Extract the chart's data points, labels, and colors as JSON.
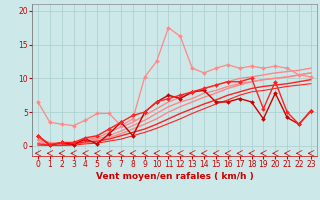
{
  "xlabel": "Vent moyen/en rafales ( km/h )",
  "bg_color": "#cce8e8",
  "grid_color": "#aacece",
  "xlim": [
    -0.5,
    23.5
  ],
  "ylim": [
    -1.5,
    21
  ],
  "yticks": [
    0,
    5,
    10,
    15,
    20
  ],
  "xticks": [
    0,
    1,
    2,
    3,
    4,
    5,
    6,
    7,
    8,
    9,
    10,
    11,
    12,
    13,
    14,
    15,
    16,
    17,
    18,
    19,
    20,
    21,
    22,
    23
  ],
  "lines": [
    {
      "x": [
        0,
        1,
        2,
        3,
        4,
        5,
        6,
        7,
        8,
        9,
        10,
        11,
        12,
        13,
        14,
        15,
        16,
        17,
        18,
        19,
        20,
        21,
        22,
        23
      ],
      "y": [
        6.5,
        3.5,
        3.2,
        3.0,
        3.8,
        4.8,
        4.8,
        3.0,
        4.0,
        10.2,
        12.5,
        17.5,
        16.2,
        11.5,
        10.8,
        11.5,
        12.0,
        11.5,
        11.8,
        11.5,
        11.8,
        11.5,
        10.5,
        10.2
      ],
      "color": "#ff8888",
      "lw": 0.9,
      "marker": "D",
      "ms": 2.0,
      "zorder": 4
    },
    {
      "x": [
        0,
        1,
        2,
        3,
        4,
        5,
        6,
        7,
        8,
        9,
        10,
        11,
        12,
        13,
        14,
        15,
        16,
        17,
        18,
        19,
        20,
        21,
        22,
        23
      ],
      "y": [
        1.0,
        0.5,
        0.3,
        0.5,
        1.0,
        1.2,
        2.0,
        2.8,
        3.5,
        4.5,
        5.5,
        6.5,
        7.2,
        7.8,
        8.5,
        9.0,
        9.5,
        10.0,
        10.2,
        10.5,
        10.8,
        11.0,
        11.2,
        11.5
      ],
      "color": "#ff8888",
      "lw": 1.0,
      "marker": null,
      "ms": 0,
      "zorder": 2
    },
    {
      "x": [
        0,
        1,
        2,
        3,
        4,
        5,
        6,
        7,
        8,
        9,
        10,
        11,
        12,
        13,
        14,
        15,
        16,
        17,
        18,
        19,
        20,
        21,
        22,
        23
      ],
      "y": [
        0.8,
        0.3,
        0.2,
        0.3,
        0.8,
        1.0,
        1.5,
        2.2,
        3.0,
        3.8,
        4.8,
        5.8,
        6.5,
        7.0,
        7.8,
        8.2,
        8.8,
        9.2,
        9.5,
        9.8,
        10.0,
        10.2,
        10.5,
        10.8
      ],
      "color": "#ff8888",
      "lw": 1.0,
      "marker": null,
      "ms": 0,
      "zorder": 2
    },
    {
      "x": [
        0,
        1,
        2,
        3,
        4,
        5,
        6,
        7,
        8,
        9,
        10,
        11,
        12,
        13,
        14,
        15,
        16,
        17,
        18,
        19,
        20,
        21,
        22,
        23
      ],
      "y": [
        0.5,
        0.2,
        0.1,
        0.2,
        0.5,
        0.7,
        1.2,
        1.8,
        2.5,
        3.2,
        4.0,
        5.0,
        5.8,
        6.5,
        7.2,
        7.8,
        8.5,
        9.0,
        9.5,
        9.8,
        10.0,
        10.2,
        10.5,
        10.8
      ],
      "color": "#ff8888",
      "lw": 1.0,
      "marker": null,
      "ms": 0,
      "zorder": 2
    },
    {
      "x": [
        0,
        1,
        2,
        3,
        4,
        5,
        6,
        7,
        8,
        9,
        10,
        11,
        12,
        13,
        14,
        15,
        16,
        17,
        18,
        19,
        20,
        21,
        22,
        23
      ],
      "y": [
        1.5,
        0.1,
        0.5,
        0.2,
        1.0,
        0.3,
        1.8,
        3.5,
        1.5,
        5.0,
        6.5,
        7.5,
        7.0,
        8.0,
        8.2,
        6.5,
        6.5,
        7.0,
        6.5,
        4.0,
        7.8,
        4.2,
        3.2,
        5.2
      ],
      "color": "#cc0000",
      "lw": 1.0,
      "marker": "D",
      "ms": 2.0,
      "zorder": 5
    },
    {
      "x": [
        0,
        1,
        2,
        3,
        4,
        5,
        6,
        7,
        8,
        9,
        10,
        11,
        12,
        13,
        14,
        15,
        16,
        17,
        18,
        19,
        20,
        21,
        22,
        23
      ],
      "y": [
        1.5,
        0.2,
        0.5,
        0.5,
        1.2,
        1.5,
        2.5,
        3.5,
        4.5,
        5.0,
        6.5,
        7.0,
        7.5,
        8.0,
        8.5,
        9.0,
        9.5,
        9.5,
        10.0,
        5.5,
        9.5,
        5.0,
        3.2,
        5.2
      ],
      "color": "#ff2222",
      "lw": 1.0,
      "marker": "D",
      "ms": 2.0,
      "zorder": 5
    },
    {
      "x": [
        0,
        1,
        2,
        3,
        4,
        5,
        6,
        7,
        8,
        9,
        10,
        11,
        12,
        13,
        14,
        15,
        16,
        17,
        18,
        19,
        20,
        21,
        22,
        23
      ],
      "y": [
        0.3,
        0.1,
        0.1,
        0.3,
        0.6,
        0.7,
        1.0,
        1.5,
        2.0,
        2.5,
        3.2,
        4.0,
        4.8,
        5.5,
        6.2,
        6.8,
        7.5,
        8.0,
        8.5,
        8.8,
        9.0,
        9.2,
        9.5,
        9.8
      ],
      "color": "#ff2222",
      "lw": 1.0,
      "marker": null,
      "ms": 0,
      "zorder": 3
    },
    {
      "x": [
        0,
        1,
        2,
        3,
        4,
        5,
        6,
        7,
        8,
        9,
        10,
        11,
        12,
        13,
        14,
        15,
        16,
        17,
        18,
        19,
        20,
        21,
        22,
        23
      ],
      "y": [
        0.1,
        0.05,
        0.05,
        0.1,
        0.3,
        0.4,
        0.7,
        1.0,
        1.5,
        2.0,
        2.6,
        3.3,
        4.0,
        4.8,
        5.5,
        6.2,
        6.8,
        7.5,
        8.0,
        8.2,
        8.5,
        8.8,
        9.0,
        9.2
      ],
      "color": "#ff2222",
      "lw": 0.8,
      "marker": null,
      "ms": 0,
      "zorder": 3
    }
  ],
  "tick_fontsize": 5.5,
  "axis_fontsize": 6.5
}
